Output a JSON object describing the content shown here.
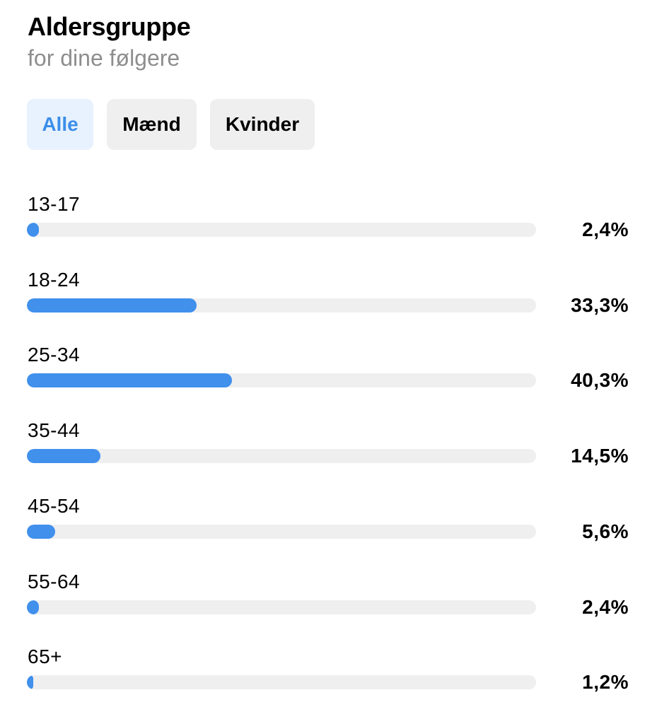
{
  "header": {
    "title": "Aldersgruppe",
    "subtitle": "for dine følgere"
  },
  "tabs": [
    {
      "label": "Alle",
      "active": true
    },
    {
      "label": "Mænd",
      "active": false
    },
    {
      "label": "Kvinder",
      "active": false
    }
  ],
  "colors": {
    "bar_fill": "#4090ec",
    "bar_track": "#efefef",
    "active_tab_bg": "#e7f2fe",
    "active_tab_text": "#3b8ee8",
    "subtitle": "#8e8e8e"
  },
  "chart_data": {
    "type": "bar",
    "orientation": "horizontal",
    "unit": "%",
    "categories": [
      "13-17",
      "18-24",
      "25-34",
      "35-44",
      "45-54",
      "55-64",
      "65+"
    ],
    "values": [
      2.4,
      33.3,
      40.3,
      14.5,
      5.6,
      2.4,
      1.2
    ],
    "value_labels": [
      "2,4%",
      "33,3%",
      "40,3%",
      "14,5%",
      "5,6%",
      "2,4%",
      "1,2%"
    ],
    "xlim": [
      0,
      100
    ],
    "grid": false
  }
}
